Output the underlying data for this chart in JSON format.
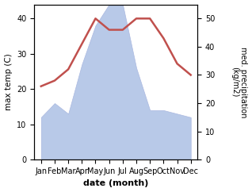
{
  "months": [
    "Jan",
    "Feb",
    "Mar",
    "Apr",
    "May",
    "Jun",
    "Jul",
    "Aug",
    "Sep",
    "Oct",
    "Nov",
    "Dec"
  ],
  "temperature": [
    26,
    28,
    32,
    41,
    50,
    46,
    46,
    50,
    50,
    43,
    34,
    30
  ],
  "precipitation": [
    12,
    16,
    13,
    27,
    38,
    44,
    44,
    26,
    14,
    14,
    13,
    12
  ],
  "temp_color": "#c0504d",
  "precip_color": "#b8c9e8",
  "precip_edge_color": "#aab8e0",
  "xlabel": "date (month)",
  "ylabel_left": "max temp (C)",
  "ylabel_right": "med. precipitation\n(kg/m2)",
  "ylim_left": [
    0,
    44
  ],
  "ylim_right": [
    0,
    55
  ],
  "yticks_left": [
    0,
    10,
    20,
    30,
    40
  ],
  "yticks_right": [
    0,
    10,
    20,
    30,
    40,
    50
  ],
  "background_color": "#ffffff",
  "temp_linewidth": 1.8
}
